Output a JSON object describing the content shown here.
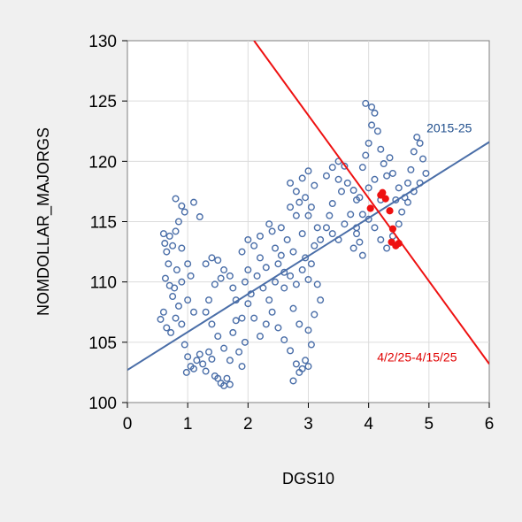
{
  "chart_data": {
    "type": "scatter",
    "xlabel": "DGS10",
    "ylabel": "NOMDOLLAR_MAJORGS",
    "xlim": [
      0,
      6
    ],
    "ylim": [
      100,
      130
    ],
    "xticks": [
      0,
      1,
      2,
      3,
      4,
      5,
      6
    ],
    "yticks": [
      100,
      105,
      110,
      115,
      120,
      125,
      130
    ],
    "grid": true,
    "colors": {
      "blue": "#4a6ea8",
      "red": "#ee1111",
      "plot_bg": "#ffffff",
      "page_bg": "#f0f0f0"
    },
    "annotations": [
      {
        "text": "2015-25",
        "color": "#1f4e8c"
      },
      {
        "text": "4/2/25-4/15/25",
        "color": "#e00000"
      }
    ],
    "series": [
      {
        "name": "2015-25",
        "marker": "hollow-circle",
        "color": "#4a6ea8",
        "points": [
          [
            0.6,
            114.0
          ],
          [
            0.62,
            113.2
          ],
          [
            0.65,
            112.5
          ],
          [
            0.7,
            113.8
          ],
          [
            0.68,
            111.5
          ],
          [
            0.63,
            110.3
          ],
          [
            0.7,
            109.7
          ],
          [
            0.75,
            108.8
          ],
          [
            0.6,
            107.5
          ],
          [
            0.55,
            106.9
          ],
          [
            0.65,
            106.2
          ],
          [
            0.72,
            105.8
          ],
          [
            0.8,
            107.0
          ],
          [
            0.85,
            108.0
          ],
          [
            0.9,
            106.5
          ],
          [
            0.95,
            104.8
          ],
          [
            1.0,
            103.8
          ],
          [
            1.05,
            103.0
          ],
          [
            0.98,
            102.5
          ],
          [
            1.1,
            102.8
          ],
          [
            1.15,
            103.5
          ],
          [
            1.2,
            104.0
          ],
          [
            1.25,
            103.2
          ],
          [
            1.3,
            102.6
          ],
          [
            1.35,
            104.2
          ],
          [
            1.4,
            103.6
          ],
          [
            1.45,
            102.2
          ],
          [
            1.5,
            102.0
          ],
          [
            1.55,
            101.6
          ],
          [
            1.6,
            101.4
          ],
          [
            1.65,
            102.0
          ],
          [
            1.7,
            101.5
          ],
          [
            0.8,
            116.9
          ],
          [
            0.9,
            116.3
          ],
          [
            0.95,
            115.8
          ],
          [
            1.1,
            116.6
          ],
          [
            1.2,
            115.4
          ],
          [
            0.85,
            115.0
          ],
          [
            0.8,
            114.2
          ],
          [
            0.75,
            113.0
          ],
          [
            0.9,
            112.8
          ],
          [
            1.0,
            111.5
          ],
          [
            0.82,
            111.0
          ],
          [
            1.05,
            110.5
          ],
          [
            0.9,
            110.0
          ],
          [
            0.78,
            109.5
          ],
          [
            1.0,
            108.5
          ],
          [
            1.1,
            107.5
          ],
          [
            1.3,
            111.5
          ],
          [
            1.4,
            112.0
          ],
          [
            1.5,
            111.8
          ],
          [
            1.6,
            111.0
          ],
          [
            1.7,
            110.5
          ],
          [
            1.75,
            109.5
          ],
          [
            1.8,
            108.5
          ],
          [
            1.55,
            110.3
          ],
          [
            1.45,
            109.8
          ],
          [
            1.35,
            108.5
          ],
          [
            1.3,
            107.5
          ],
          [
            1.4,
            106.5
          ],
          [
            1.5,
            105.5
          ],
          [
            1.6,
            104.5
          ],
          [
            1.7,
            103.5
          ],
          [
            1.75,
            105.8
          ],
          [
            1.8,
            106.8
          ],
          [
            1.85,
            104.2
          ],
          [
            1.9,
            103.0
          ],
          [
            1.95,
            105.0
          ],
          [
            1.9,
            112.5
          ],
          [
            2.0,
            113.5
          ],
          [
            2.1,
            113.0
          ],
          [
            2.2,
            112.0
          ],
          [
            2.3,
            111.2
          ],
          [
            2.0,
            111.0
          ],
          [
            1.95,
            110.0
          ],
          [
            2.05,
            109.0
          ],
          [
            2.15,
            110.5
          ],
          [
            2.25,
            109.5
          ],
          [
            2.35,
            108.5
          ],
          [
            2.45,
            110.0
          ],
          [
            2.5,
            111.5
          ],
          [
            2.55,
            112.2
          ],
          [
            2.6,
            110.8
          ],
          [
            2.4,
            107.5
          ],
          [
            2.3,
            106.5
          ],
          [
            2.2,
            105.5
          ],
          [
            2.1,
            107.0
          ],
          [
            2.0,
            108.2
          ],
          [
            1.9,
            107.0
          ],
          [
            2.5,
            106.2
          ],
          [
            2.6,
            105.2
          ],
          [
            2.7,
            104.3
          ],
          [
            2.8,
            103.2
          ],
          [
            2.6,
            109.5
          ],
          [
            2.7,
            110.5
          ],
          [
            2.8,
            109.8
          ],
          [
            2.9,
            111.0
          ],
          [
            3.0,
            110.2
          ],
          [
            2.75,
            107.8
          ],
          [
            2.85,
            106.5
          ],
          [
            2.2,
            113.8
          ],
          [
            2.4,
            114.2
          ],
          [
            2.45,
            112.8
          ],
          [
            2.65,
            113.5
          ],
          [
            2.75,
            112.5
          ],
          [
            2.55,
            114.5
          ],
          [
            2.35,
            114.8
          ],
          [
            2.8,
            115.5
          ],
          [
            2.7,
            116.2
          ],
          [
            2.9,
            114.0
          ],
          [
            2.95,
            112.0
          ],
          [
            3.05,
            111.5
          ],
          [
            3.1,
            113.0
          ],
          [
            3.15,
            109.8
          ],
          [
            3.2,
            108.5
          ],
          [
            3.1,
            107.3
          ],
          [
            3.0,
            106.0
          ],
          [
            3.05,
            104.8
          ],
          [
            2.95,
            103.5
          ],
          [
            2.85,
            102.5
          ],
          [
            2.75,
            101.8
          ],
          [
            2.9,
            102.8
          ],
          [
            3.0,
            103.0
          ],
          [
            2.7,
            118.2
          ],
          [
            2.8,
            117.5
          ],
          [
            2.9,
            118.6
          ],
          [
            3.0,
            119.2
          ],
          [
            3.1,
            118.0
          ],
          [
            2.95,
            117.0
          ],
          [
            3.05,
            116.2
          ],
          [
            2.85,
            116.6
          ],
          [
            3.0,
            115.5
          ],
          [
            3.15,
            114.5
          ],
          [
            3.2,
            113.5
          ],
          [
            3.3,
            118.8
          ],
          [
            3.4,
            119.5
          ],
          [
            3.5,
            120.0
          ],
          [
            3.6,
            119.6
          ],
          [
            3.5,
            118.5
          ],
          [
            3.55,
            117.5
          ],
          [
            3.4,
            116.5
          ],
          [
            3.35,
            115.5
          ],
          [
            3.3,
            114.5
          ],
          [
            3.4,
            114.0
          ],
          [
            3.5,
            113.5
          ],
          [
            3.6,
            114.8
          ],
          [
            3.7,
            115.6
          ],
          [
            3.8,
            116.8
          ],
          [
            3.75,
            117.6
          ],
          [
            3.65,
            118.2
          ],
          [
            3.8,
            114.5
          ],
          [
            3.85,
            113.3
          ],
          [
            3.9,
            112.2
          ],
          [
            3.75,
            112.8
          ],
          [
            3.9,
            119.5
          ],
          [
            3.95,
            120.5
          ],
          [
            4.0,
            121.5
          ],
          [
            4.05,
            123.0
          ],
          [
            4.1,
            124.0
          ],
          [
            3.95,
            124.8
          ],
          [
            4.05,
            124.5
          ],
          [
            4.15,
            122.5
          ],
          [
            4.2,
            121.0
          ],
          [
            4.25,
            119.8
          ],
          [
            4.3,
            118.8
          ],
          [
            4.35,
            120.3
          ],
          [
            4.4,
            119.0
          ],
          [
            4.5,
            117.8
          ],
          [
            4.45,
            116.8
          ],
          [
            4.55,
            115.8
          ],
          [
            4.6,
            117.0
          ],
          [
            4.65,
            118.2
          ],
          [
            4.7,
            119.3
          ],
          [
            4.75,
            120.8
          ],
          [
            4.8,
            122.0
          ],
          [
            4.85,
            121.5
          ],
          [
            4.9,
            120.2
          ],
          [
            4.95,
            119.0
          ],
          [
            4.85,
            118.2
          ],
          [
            4.75,
            117.5
          ],
          [
            4.65,
            116.6
          ],
          [
            4.5,
            114.8
          ],
          [
            4.4,
            113.8
          ],
          [
            4.3,
            112.8
          ],
          [
            4.2,
            113.5
          ],
          [
            4.1,
            114.5
          ],
          [
            4.0,
            115.2
          ],
          [
            3.9,
            115.6
          ],
          [
            3.8,
            114.0
          ],
          [
            3.85,
            117.0
          ],
          [
            4.0,
            117.8
          ],
          [
            4.1,
            118.5
          ],
          [
            4.2,
            116.8
          ]
        ]
      },
      {
        "name": "4/2/25-4/15/25",
        "marker": "filled-circle",
        "color": "#ee1111",
        "points": [
          [
            4.03,
            116.1
          ],
          [
            4.2,
            117.2
          ],
          [
            4.23,
            117.4
          ],
          [
            4.28,
            116.9
          ],
          [
            4.35,
            115.9
          ],
          [
            4.4,
            114.4
          ],
          [
            4.38,
            113.3
          ],
          [
            4.45,
            113.0
          ],
          [
            4.5,
            113.2
          ]
        ]
      }
    ],
    "fit_lines": [
      {
        "series": "2015-25",
        "color": "#4a6ea8",
        "x": [
          0,
          6
        ],
        "y": [
          102.7,
          121.6
        ]
      },
      {
        "series": "4/2/25-4/15/25",
        "color": "#ee1111",
        "x": [
          2.1,
          6.0
        ],
        "y": [
          130.0,
          103.2
        ]
      }
    ]
  }
}
